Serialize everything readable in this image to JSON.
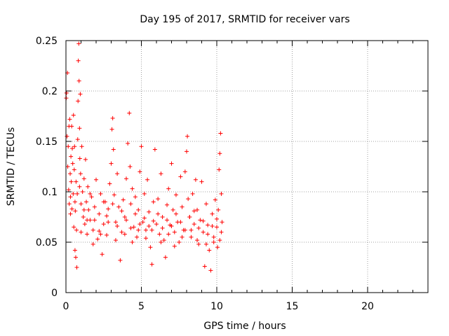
{
  "chart_data": {
    "type": "scatter",
    "title": "Day 195 of 2017, SRMTID for receiver vars",
    "xlabel": "GPS time / hours",
    "ylabel": "SRMTID / TECUs",
    "xlim": [
      0,
      24
    ],
    "ylim": [
      0,
      0.25
    ],
    "xticks": [
      0,
      5,
      10,
      15,
      20
    ],
    "yticks": [
      0,
      0.05,
      0.1,
      0.15,
      0.2,
      0.25
    ],
    "xtick_labels": [
      "0",
      "5",
      "10",
      "15",
      "20"
    ],
    "ytick_labels": [
      "0",
      "0.05",
      "0.1",
      "0.15",
      "0.2",
      "0.25"
    ],
    "grid": true,
    "marker": "+",
    "color": "#ff0000",
    "series": [
      {
        "values": [
          [
            0.02,
            0.193
          ],
          [
            0.04,
            0.198
          ],
          [
            0.07,
            0.155
          ],
          [
            0.1,
            0.218
          ],
          [
            0.12,
            0.125
          ],
          [
            0.15,
            0.145
          ],
          [
            0.18,
            0.102
          ],
          [
            0.2,
            0.165
          ],
          [
            0.22,
            0.088
          ],
          [
            0.25,
            0.172
          ],
          [
            0.28,
            0.118
          ],
          [
            0.3,
            0.095
          ],
          [
            0.33,
            0.135
          ],
          [
            0.35,
            0.11
          ],
          [
            0.38,
            0.165
          ],
          [
            0.4,
            0.083
          ],
          [
            0.42,
            0.143
          ],
          [
            0.45,
            0.128
          ],
          [
            0.48,
            0.098
          ],
          [
            0.5,
            0.176
          ],
          [
            0.52,
            0.065
          ],
          [
            0.55,
            0.122
          ],
          [
            0.57,
            0.145
          ],
          [
            0.6,
            0.042
          ],
          [
            0.62,
            0.081
          ],
          [
            0.65,
            0.035
          ],
          [
            0.67,
            0.11
          ],
          [
            0.7,
            0.062
          ],
          [
            0.72,
            0.025
          ],
          [
            0.75,
            0.098
          ],
          [
            0.78,
            0.152
          ],
          [
            0.8,
            0.19
          ],
          [
            0.82,
            0.23
          ],
          [
            0.85,
            0.247
          ],
          [
            0.87,
            0.21
          ],
          [
            0.9,
            0.163
          ],
          [
            0.92,
            0.133
          ],
          [
            0.95,
            0.197
          ],
          [
            0.97,
            0.118
          ],
          [
            1.0,
            0.088
          ],
          [
            1.05,
            0.145
          ],
          [
            1.1,
            0.1
          ],
          [
            1.15,
            0.075
          ],
          [
            1.2,
            0.113
          ],
          [
            1.25,
            0.068
          ],
          [
            1.3,
            0.132
          ],
          [
            1.35,
            0.09
          ],
          [
            1.4,
            0.058
          ],
          [
            1.45,
            0.105
          ],
          [
            1.5,
            0.082
          ],
          [
            1.6,
            0.072
          ],
          [
            1.7,
            0.095
          ],
          [
            1.8,
            0.062
          ],
          [
            1.9,
            0.085
          ],
          [
            2.0,
            0.112
          ],
          [
            2.1,
            0.053
          ],
          [
            2.2,
            0.078
          ],
          [
            2.3,
            0.098
          ],
          [
            2.4,
            0.038
          ],
          [
            2.5,
            0.068
          ],
          [
            2.6,
            0.09
          ],
          [
            2.7,
            0.057
          ],
          [
            2.8,
            0.083
          ],
          [
            2.9,
            0.108
          ],
          [
            3.0,
            0.128
          ],
          [
            3.05,
            0.162
          ],
          [
            3.1,
            0.173
          ],
          [
            3.15,
            0.142
          ],
          [
            3.2,
            0.097
          ],
          [
            3.3,
            0.07
          ],
          [
            3.4,
            0.118
          ],
          [
            3.5,
            0.085
          ],
          [
            3.6,
            0.032
          ],
          [
            3.7,
            0.06
          ],
          [
            3.8,
            0.092
          ],
          [
            3.9,
            0.075
          ],
          [
            4.0,
            0.113
          ],
          [
            4.1,
            0.148
          ],
          [
            4.2,
            0.178
          ],
          [
            4.25,
            0.125
          ],
          [
            4.3,
            0.088
          ],
          [
            4.4,
            0.103
          ],
          [
            4.5,
            0.065
          ],
          [
            4.6,
            0.095
          ],
          [
            4.7,
            0.055
          ],
          [
            4.8,
            0.082
          ],
          [
            4.9,
            0.12
          ],
          [
            5.0,
            0.145
          ],
          [
            5.1,
            0.07
          ],
          [
            5.2,
            0.098
          ],
          [
            5.3,
            0.062
          ],
          [
            5.4,
            0.112
          ],
          [
            5.5,
            0.08
          ],
          [
            5.6,
            0.045
          ],
          [
            5.7,
            0.028
          ],
          [
            5.8,
            0.09
          ],
          [
            5.9,
            0.142
          ],
          [
            6.0,
            0.068
          ],
          [
            6.1,
            0.093
          ],
          [
            6.2,
            0.058
          ],
          [
            6.3,
            0.118
          ],
          [
            6.4,
            0.075
          ],
          [
            6.5,
            0.052
          ],
          [
            6.6,
            0.035
          ],
          [
            6.7,
            0.087
          ],
          [
            6.8,
            0.103
          ],
          [
            6.9,
            0.067
          ],
          [
            7.0,
            0.128
          ],
          [
            7.1,
            0.082
          ],
          [
            7.2,
            0.06
          ],
          [
            7.3,
            0.097
          ],
          [
            7.4,
            0.07
          ],
          [
            7.5,
            0.05
          ],
          [
            7.6,
            0.115
          ],
          [
            7.7,
            0.085
          ],
          [
            7.8,
            0.062
          ],
          [
            7.9,
            0.12
          ],
          [
            8.0,
            0.14
          ],
          [
            8.05,
            0.155
          ],
          [
            8.1,
            0.093
          ],
          [
            8.2,
            0.075
          ],
          [
            8.3,
            0.055
          ],
          [
            8.4,
            0.098
          ],
          [
            8.5,
            0.068
          ],
          [
            8.6,
            0.112
          ],
          [
            8.7,
            0.082
          ],
          [
            8.8,
            0.048
          ],
          [
            8.9,
            0.072
          ],
          [
            9.0,
            0.11
          ],
          [
            9.1,
            0.06
          ],
          [
            9.2,
            0.026
          ],
          [
            9.3,
            0.088
          ],
          [
            9.4,
            0.067
          ],
          [
            9.5,
            0.042
          ],
          [
            9.6,
            0.022
          ],
          [
            9.7,
            0.078
          ],
          [
            9.8,
            0.055
          ],
          [
            9.9,
            0.092
          ],
          [
            10.0,
            0.065
          ],
          [
            10.05,
            0.045
          ],
          [
            10.1,
            0.082
          ],
          [
            10.15,
            0.122
          ],
          [
            10.2,
            0.138
          ],
          [
            10.25,
            0.158
          ],
          [
            10.3,
            0.098
          ],
          [
            10.35,
            0.07
          ],
          [
            0.3,
            0.078
          ],
          [
            0.6,
            0.09
          ],
          [
            0.9,
            0.105
          ],
          [
            1.2,
            0.082
          ],
          [
            1.6,
            0.098
          ],
          [
            1.9,
            0.072
          ],
          [
            2.2,
            0.061
          ],
          [
            2.5,
            0.09
          ],
          [
            2.8,
            0.07
          ],
          [
            3.1,
            0.088
          ],
          [
            3.4,
            0.066
          ],
          [
            3.7,
            0.081
          ],
          [
            4.0,
            0.072
          ],
          [
            4.3,
            0.064
          ],
          [
            4.6,
            0.078
          ],
          [
            4.9,
            0.068
          ],
          [
            5.2,
            0.074
          ],
          [
            5.5,
            0.066
          ],
          [
            5.8,
            0.071
          ],
          [
            6.1,
            0.078
          ],
          [
            6.4,
            0.064
          ],
          [
            6.7,
            0.072
          ],
          [
            7.0,
            0.066
          ],
          [
            7.3,
            0.078
          ],
          [
            7.6,
            0.07
          ],
          [
            7.9,
            0.062
          ],
          [
            8.2,
            0.075
          ],
          [
            8.5,
            0.081
          ],
          [
            8.8,
            0.064
          ],
          [
            9.1,
            0.071
          ],
          [
            9.4,
            0.058
          ],
          [
            9.7,
            0.066
          ],
          [
            10.0,
            0.073
          ],
          [
            10.3,
            0.06
          ],
          [
            1.0,
            0.06
          ],
          [
            1.4,
            0.072
          ],
          [
            1.8,
            0.048
          ],
          [
            2.3,
            0.058
          ],
          [
            2.7,
            0.076
          ],
          [
            3.3,
            0.052
          ],
          [
            3.9,
            0.058
          ],
          [
            4.4,
            0.05
          ],
          [
            4.8,
            0.062
          ],
          [
            5.3,
            0.054
          ],
          [
            5.7,
            0.062
          ],
          [
            6.3,
            0.05
          ],
          [
            6.8,
            0.058
          ],
          [
            7.2,
            0.046
          ],
          [
            7.7,
            0.055
          ],
          [
            8.3,
            0.062
          ],
          [
            8.7,
            0.052
          ],
          [
            9.3,
            0.048
          ],
          [
            9.8,
            0.05
          ],
          [
            10.2,
            0.052
          ]
        ]
      }
    ]
  }
}
